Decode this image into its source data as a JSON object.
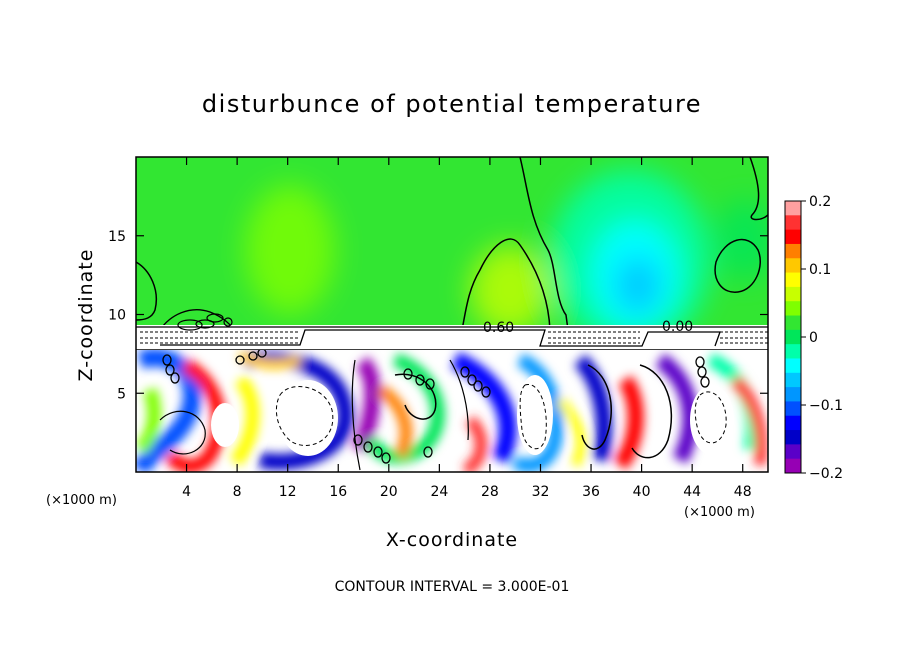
{
  "chart_data": {
    "type": "heatmap",
    "title": "disturbunce of potential temperature",
    "xlabel": "X-coordinate",
    "ylabel": "Z-coordinate",
    "x_unit": "(×1000 m)",
    "y_unit": "(×1000 m)",
    "xlim": [
      0,
      50
    ],
    "ylim": [
      0,
      20
    ],
    "x_ticks": [
      4,
      8,
      12,
      16,
      20,
      24,
      28,
      32,
      36,
      40,
      44,
      48
    ],
    "y_ticks": [
      5,
      10,
      15
    ],
    "colorbar": {
      "vmin": -0.2,
      "vmax": 0.2,
      "ticks": [
        0.2,
        0.1,
        0,
        -0.1,
        -0.2
      ],
      "tick_labels": [
        "0.2",
        "0.1",
        "0",
        "−0.1",
        "−0.2"
      ],
      "colors": [
        "#ffa0a0",
        "#ff3232",
        "#ff0000",
        "#ff7f00",
        "#ffc800",
        "#ffff00",
        "#c8ff00",
        "#7fff00",
        "#32e632",
        "#00e65a",
        "#00ffaa",
        "#00ffff",
        "#00c8ff",
        "#0096ff",
        "#0050ff",
        "#0000ff",
        "#0000c8",
        "#5a00c8",
        "#9600b4"
      ]
    },
    "contour_labels": [
      "0.60",
      "0.00"
    ],
    "contour_interval_text": "CONTOUR INTERVAL = 3.000E-01"
  }
}
